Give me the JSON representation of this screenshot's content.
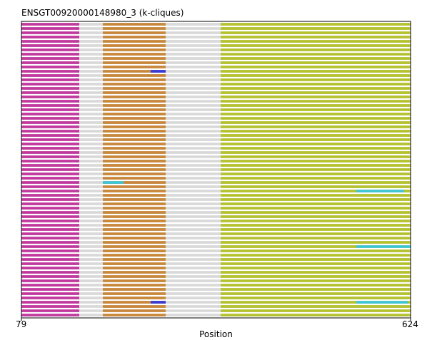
{
  "chart_data": {
    "type": "bar",
    "title": "ENSGT00920000148980_3 (k-cliques)",
    "xlabel": "Position",
    "ylabel": "",
    "xlim": [
      79,
      624
    ],
    "x_tick_labels": [
      "79",
      "624"
    ],
    "n_sequences": 69,
    "grid": false,
    "legend": "none",
    "colors": {
      "gap": "#d9d9d9",
      "magenta": "#c2399e",
      "orange": "#c8873a",
      "olive": "#b5c22e",
      "cyan": "#3fc6d6",
      "blue": "#3a3ad6"
    },
    "series": [
      {
        "color_key": "magenta",
        "x_range": [
          79,
          160
        ]
      },
      {
        "color_key": "orange",
        "x_range": [
          193,
          281
        ]
      },
      {
        "color_key": "olive",
        "x_range": [
          358,
          624
        ]
      },
      {
        "color_key": "cyan",
        "segments": [
          {
            "row": 37,
            "x_range": [
              193,
              222
            ]
          },
          {
            "row": 39,
            "x_range": [
              548,
              615
            ]
          },
          {
            "row": 52,
            "x_range": [
              548,
              624
            ]
          },
          {
            "row": 65,
            "x_range": [
              548,
              620
            ]
          }
        ]
      },
      {
        "color_key": "blue",
        "segments": [
          {
            "row": 11,
            "x_range": [
              260,
              281
            ]
          },
          {
            "row": 65,
            "x_range": [
              260,
              281
            ]
          }
        ]
      }
    ]
  }
}
